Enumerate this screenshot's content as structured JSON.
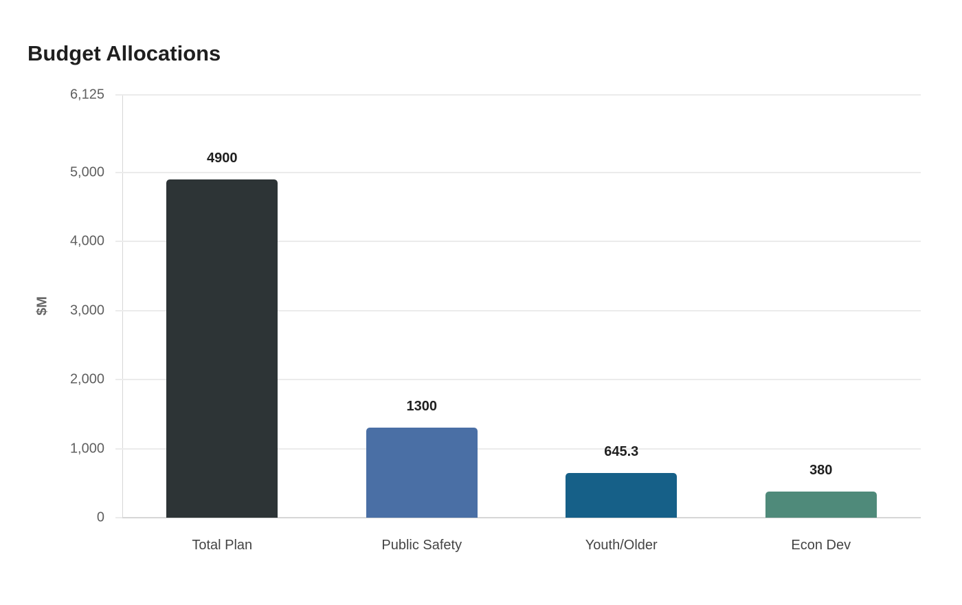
{
  "chart_data": {
    "type": "bar",
    "title": "Budget Allocations",
    "xlabel": "",
    "ylabel": "$M",
    "ylim": [
      0,
      6125
    ],
    "yticks": [
      0,
      1000,
      2000,
      3000,
      4000,
      5000,
      6125
    ],
    "ytick_labels": [
      "0",
      "1,000",
      "2,000",
      "3,000",
      "4,000",
      "5,000",
      "6,125"
    ],
    "grid": true,
    "legend": "none",
    "categories": [
      "Total Plan",
      "Public Safety",
      "Youth/Older",
      "Econ Dev"
    ],
    "values": [
      4900,
      1300,
      645.3,
      380
    ],
    "value_labels": [
      "4900",
      "1300",
      "645.3",
      "380"
    ],
    "colors": [
      "#2d3436",
      "#4a6fa5",
      "#166088",
      "#4f8a7a"
    ]
  }
}
